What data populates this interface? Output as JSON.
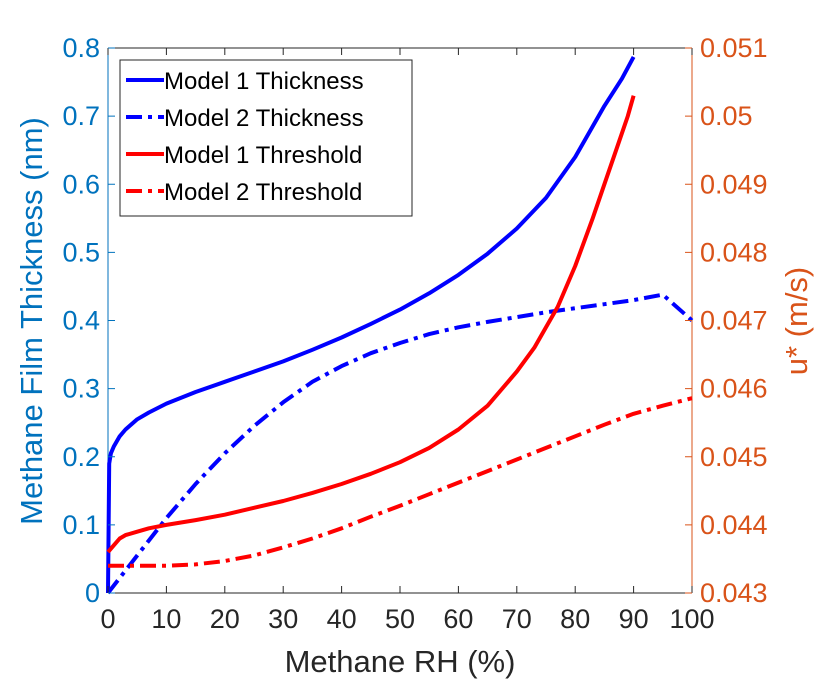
{
  "chart_data": {
    "type": "line",
    "xlabel": "Methane RH (%)",
    "ylabel_left": "Methane Film Thickness (nm)",
    "ylabel_right": "u* (m/s)",
    "xlim": [
      0,
      100
    ],
    "ylim_left": [
      0,
      0.8
    ],
    "ylim_right": [
      0.043,
      0.051
    ],
    "x_ticks": [
      "0",
      "10",
      "20",
      "30",
      "40",
      "50",
      "60",
      "70",
      "80",
      "90",
      "100"
    ],
    "y_left_ticks": [
      "0",
      "0.1",
      "0.2",
      "0.3",
      "0.4",
      "0.5",
      "0.6",
      "0.7",
      "0.8"
    ],
    "y_right_ticks": [
      "0.043",
      "0.044",
      "0.045",
      "0.046",
      "0.047",
      "0.048",
      "0.049",
      "0.05",
      "0.051"
    ],
    "legend_position": "top-left",
    "series": [
      {
        "name": "Model 1 Thickness",
        "axis": "left",
        "color": "#0000ff",
        "style": "solid",
        "x": [
          0,
          0.2,
          0.5,
          1,
          2,
          3,
          5,
          7,
          10,
          15,
          20,
          25,
          30,
          35,
          40,
          45,
          50,
          55,
          60,
          65,
          70,
          75,
          80,
          85,
          88,
          90
        ],
        "values": [
          0.0,
          0.19,
          0.205,
          0.215,
          0.23,
          0.24,
          0.255,
          0.265,
          0.278,
          0.295,
          0.31,
          0.325,
          0.34,
          0.357,
          0.375,
          0.395,
          0.416,
          0.44,
          0.467,
          0.498,
          0.535,
          0.58,
          0.64,
          0.715,
          0.755,
          0.787
        ]
      },
      {
        "name": "Model 2 Thickness",
        "axis": "left",
        "color": "#0000ff",
        "style": "dashdot",
        "x": [
          0,
          5,
          10,
          15,
          20,
          25,
          30,
          35,
          40,
          45,
          50,
          55,
          60,
          65,
          70,
          75,
          80,
          85,
          90,
          95,
          100
        ],
        "values": [
          0.0,
          0.055,
          0.11,
          0.16,
          0.205,
          0.245,
          0.28,
          0.31,
          0.333,
          0.352,
          0.367,
          0.38,
          0.39,
          0.398,
          0.405,
          0.412,
          0.418,
          0.424,
          0.43,
          0.438,
          0.4
        ]
      },
      {
        "name": "Model 1 Threshold",
        "axis": "right",
        "color": "#ff0000",
        "style": "solid",
        "x": [
          0,
          0.5,
          1,
          2,
          3,
          5,
          7,
          10,
          15,
          20,
          25,
          30,
          35,
          40,
          45,
          50,
          55,
          60,
          65,
          70,
          73,
          75,
          77,
          80,
          83,
          85,
          87,
          89,
          90
        ],
        "values": [
          0.0436,
          0.04365,
          0.0437,
          0.0438,
          0.04385,
          0.0439,
          0.04395,
          0.044,
          0.04407,
          0.04415,
          0.04425,
          0.04435,
          0.04447,
          0.0446,
          0.04475,
          0.04492,
          0.04513,
          0.0454,
          0.04575,
          0.04625,
          0.0466,
          0.0469,
          0.0472,
          0.0478,
          0.0485,
          0.049,
          0.0495,
          0.05,
          0.0503
        ]
      },
      {
        "name": "Model 2 Threshold",
        "axis": "right",
        "color": "#ff0000",
        "style": "dashdot",
        "x": [
          0,
          5,
          10,
          15,
          20,
          25,
          30,
          35,
          40,
          45,
          50,
          55,
          60,
          65,
          70,
          75,
          80,
          85,
          90,
          95,
          100
        ],
        "values": [
          0.0434,
          0.0434,
          0.0434,
          0.04342,
          0.04347,
          0.04355,
          0.04367,
          0.0438,
          0.04395,
          0.04412,
          0.04428,
          0.04445,
          0.04462,
          0.04479,
          0.04496,
          0.04513,
          0.0453,
          0.04547,
          0.04563,
          0.04575,
          0.04586
        ]
      }
    ]
  }
}
